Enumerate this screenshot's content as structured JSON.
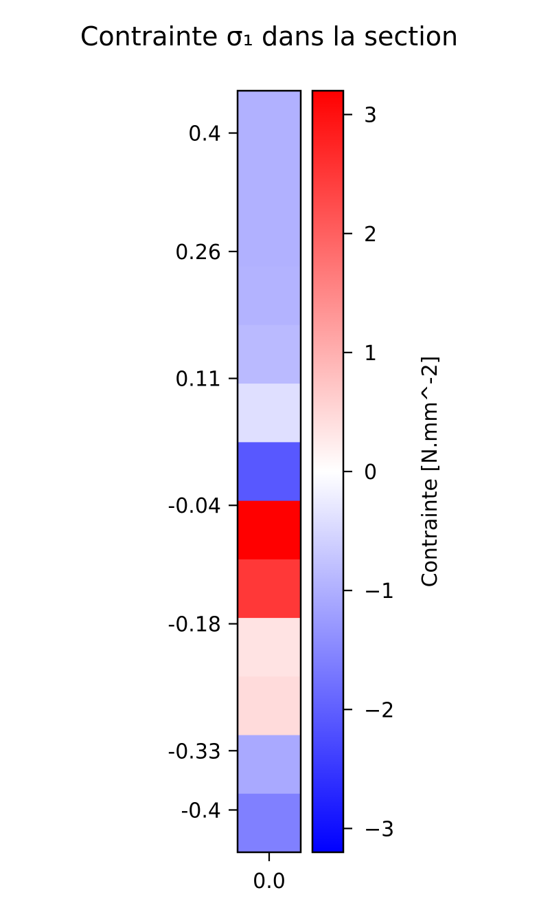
{
  "chart_data": {
    "type": "heatmap",
    "title": "Contrainte σ₁ dans la section",
    "xlabel": "",
    "ylabel": "",
    "x_tick_labels": [
      "0.0"
    ],
    "y_ticks": [
      {
        "value": 0.4,
        "label": "0.4"
      },
      {
        "value": 0.26,
        "label": "0.26"
      },
      {
        "value": 0.11,
        "label": "0.11"
      },
      {
        "value": -0.04,
        "label": "-0.04"
      },
      {
        "value": -0.18,
        "label": "-0.18"
      },
      {
        "value": -0.33,
        "label": "-0.33"
      },
      {
        "value": -0.4,
        "label": "-0.4"
      }
    ],
    "ylim": [
      -0.45,
      0.45
    ],
    "cells": [
      {
        "value": -0.98
      },
      {
        "value": -0.98
      },
      {
        "value": -0.98
      },
      {
        "value": -0.95
      },
      {
        "value": -0.87
      },
      {
        "value": -0.4
      },
      {
        "value": -2.1
      },
      {
        "value": 3.2
      },
      {
        "value": 2.5
      },
      {
        "value": 0.35
      },
      {
        "value": 0.45
      },
      {
        "value": -1.08
      },
      {
        "value": -1.6
      }
    ],
    "colorbar": {
      "colormap": "bwr",
      "vmin": -3.2,
      "vmax": 3.2,
      "ticks": [
        3,
        2,
        1,
        0,
        -1,
        -2,
        -3
      ],
      "tick_labels": [
        "3",
        "2",
        "1",
        "0",
        "−1",
        "−2",
        "−3"
      ],
      "label": "Contrainte [N.mm^-2]"
    }
  }
}
